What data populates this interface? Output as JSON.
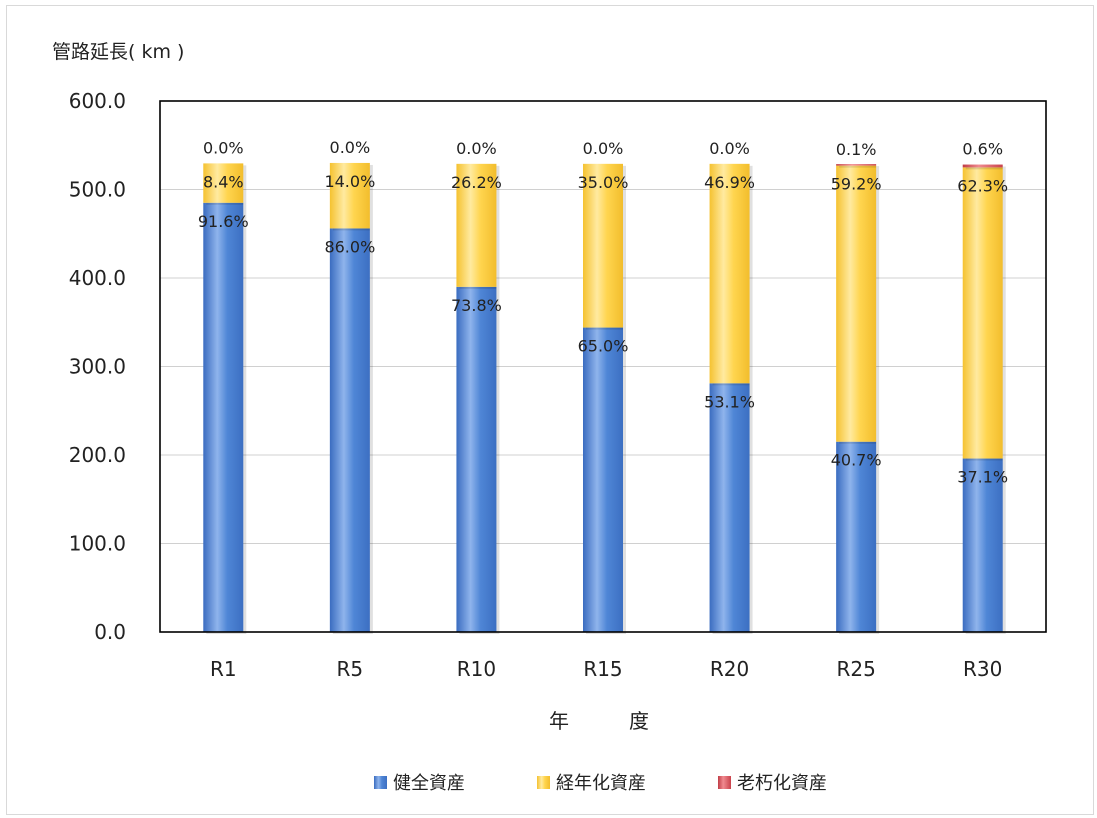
{
  "chart_data": {
    "type": "bar",
    "stacked": true,
    "title": "",
    "ylabel": "管路延長( km )",
    "xlabel": "年　　　度",
    "categories": [
      "R1",
      "R5",
      "R10",
      "R15",
      "R20",
      "R25",
      "R30"
    ],
    "ylim": [
      0,
      600
    ],
    "yticks": [
      "0.0",
      "100.0",
      "200.0",
      "300.0",
      "400.0",
      "500.0",
      "600.0"
    ],
    "ytick_values": [
      0,
      100,
      200,
      300,
      400,
      500,
      600
    ],
    "grid": true,
    "legend_position": "bottom",
    "series": [
      {
        "name": "健全資産",
        "color": "#4a7fd1",
        "values": [
          485,
          456,
          390,
          344,
          281,
          215,
          196
        ],
        "labels": [
          "91.6%",
          "86.0%",
          "73.8%",
          "65.0%",
          "53.1%",
          "40.7%",
          "37.1%"
        ]
      },
      {
        "name": "経年化資産",
        "color": "#ffd24d",
        "values": [
          44.5,
          74,
          139,
          185,
          248,
          312,
          329
        ],
        "labels": [
          "8.4%",
          "14.0%",
          "26.2%",
          "35.0%",
          "46.9%",
          "59.2%",
          "62.3%"
        ]
      },
      {
        "name": "老朽化資産",
        "color": "#d6505a",
        "values": [
          0,
          0,
          0,
          0,
          0,
          0.5,
          3.2
        ],
        "labels": [
          "0.0%",
          "0.0%",
          "0.0%",
          "0.0%",
          "0.0%",
          "0.1%",
          "0.6%"
        ]
      }
    ]
  }
}
